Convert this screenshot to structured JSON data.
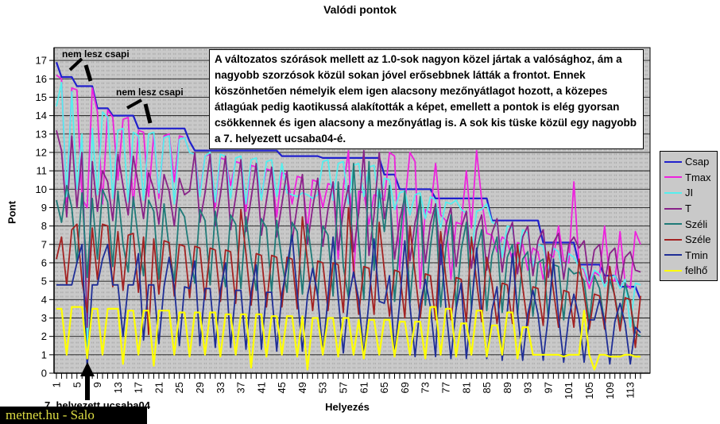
{
  "header": {
    "title": "Valódi pontok"
  },
  "axes": {
    "y_title": "Pont",
    "x_title": "Helyezés",
    "y_tick_labels": [
      "0",
      "1",
      "2",
      "3",
      "4",
      "5",
      "6",
      "7",
      "8",
      "9",
      "10",
      "11",
      "12",
      "13",
      "14",
      "15",
      "16",
      "17"
    ],
    "x_tick_labels": [
      "1",
      "5",
      "9",
      "13",
      "17",
      "21",
      "25",
      "29",
      "33",
      "37",
      "41",
      "45",
      "49",
      "53",
      "57",
      "61",
      "65",
      "69",
      "73",
      "77",
      "81",
      "85",
      "89",
      "93",
      "97",
      "101",
      "105",
      "109",
      "113"
    ],
    "x_label_step": 4
  },
  "annotations": {
    "callout1": "nem lesz csapi",
    "callout2": "nem lesz csapi",
    "arrow_caption": "7. helyezett ucsaba04",
    "watermark": "metnet.hu - Salo"
  },
  "textbox": {
    "content": "A változatos szórások mellett az 1.0-sok nagyon közel jártak a valósághoz, ám a nagyobb szorzósok közül sokan jóvel erősebbnek látták a frontot. Ennek köszönhetően némelyik elem igen alacsony mezőnyátlagot hozott, a közepes átlagúak pedig kaotikussá alakították a képet, emellett a pontok is elég gyorsan csökkennek és igen alacsony a mezőnyátlag is. A sok kis tüske közül egy nagyobb a 7. helyezett ucsaba04-é."
  },
  "chart_data": {
    "type": "line",
    "title": "Valódi pontok",
    "xlabel": "Helyezés",
    "ylabel": "Pont",
    "ylim": [
      0,
      17.7
    ],
    "x_start": 1,
    "x_step": 1,
    "x_count": 115,
    "grid": true,
    "legend_position": "right",
    "plot_bg": "#C9C9C9",
    "series": [
      {
        "name": "Csap",
        "color": "#2020CC",
        "values": [
          16.9,
          16.1,
          16.1,
          16.1,
          15.6,
          15.6,
          15.6,
          15.6,
          14.4,
          14.4,
          14.4,
          14,
          14,
          14,
          14,
          14,
          13.3,
          13.3,
          13.3,
          13.3,
          13.3,
          13.3,
          13.3,
          13.3,
          13.3,
          13.3,
          12.6,
          12.1,
          12.1,
          12.1,
          12.1,
          12.1,
          12.1,
          12.1,
          12.1,
          12.1,
          12.1,
          12.1,
          12.1,
          12.1,
          12.1,
          12.1,
          12.1,
          12.1,
          11.8,
          11.8,
          11.8,
          11.8,
          11.8,
          11.8,
          11.8,
          11.8,
          11.7,
          11.7,
          11.7,
          11.7,
          11.7,
          11.7,
          11.7,
          11.7,
          11.7,
          11.7,
          11.7,
          11.7,
          10.8,
          10.8,
          10.8,
          10,
          10,
          10,
          10,
          10,
          10,
          10,
          9.5,
          9.5,
          9.5,
          9.5,
          9.5,
          9.5,
          9.5,
          9.5,
          9.5,
          9.5,
          9.5,
          8.3,
          8.3,
          8.3,
          8.3,
          8.3,
          8.3,
          8.3,
          8.3,
          8.3,
          8.3,
          7.1,
          7.1,
          7.1,
          7.1,
          7.1,
          7.1,
          7.1,
          5.9,
          5.9,
          5.9,
          5.9,
          5.9,
          5.3,
          5.3,
          5.3,
          4.7,
          4.7,
          4.7,
          4.7,
          4
        ]
      },
      {
        "name": "Tmax",
        "color": "#EE22DD",
        "values": [
          16.2,
          16,
          9.3,
          15.5,
          15.4,
          9.5,
          9,
          15.5,
          14.2,
          9.2,
          14.3,
          13.9,
          10.5,
          13.8,
          13.9,
          9,
          13.2,
          13.1,
          9.6,
          13,
          9.5,
          12.9,
          13,
          10.4,
          12.9,
          12.8,
          12,
          11.9,
          9.8,
          11.8,
          11.9,
          9,
          11.7,
          11.6,
          10.2,
          11.5,
          11.4,
          8.8,
          11.3,
          11.2,
          9.6,
          11.1,
          11,
          8.5,
          10.9,
          10.8,
          9.2,
          10.7,
          10.6,
          7.8,
          10.5,
          10.4,
          9,
          10.3,
          10.2,
          6.2,
          10.1,
          12.1,
          5.2,
          9.9,
          9.8,
          8.1,
          9.7,
          9.6,
          9.4,
          12,
          11.8,
          5.6,
          9.2,
          12,
          11.5,
          4.6,
          8.9,
          8.7,
          11.4,
          8.6,
          8.3,
          5.1,
          8.2,
          8.1,
          11,
          7.9,
          12.1,
          9.4,
          7.6,
          7.5,
          6.6,
          7.4,
          7.2,
          6.1,
          7.1,
          7,
          5.6,
          6.8,
          6.6,
          5.1,
          6.5,
          6.3,
          8,
          6.1,
          6,
          10.4,
          5.9,
          5.6,
          4.6,
          5.5,
          5.3,
          8,
          5.1,
          5,
          7.7,
          4.9,
          4.6,
          7.7,
          7
        ]
      },
      {
        "name": "JI",
        "color": "#55EEEE",
        "values": [
          14.5,
          15.8,
          9.6,
          15.3,
          10,
          13,
          1.3,
          13.3,
          9.7,
          14.2,
          13.9,
          9.5,
          13.2,
          13.3,
          9.3,
          13.1,
          12.9,
          9.4,
          13,
          13.1,
          9.8,
          12.8,
          12.9,
          9.2,
          12.7,
          12.8,
          12,
          11.9,
          9.6,
          11.8,
          12,
          9.3,
          11.9,
          11.8,
          9.5,
          11.7,
          11.8,
          9.2,
          11.6,
          11.7,
          9.4,
          11.5,
          11.6,
          9.6,
          11.4,
          9.8,
          9.7,
          9.6,
          9.8,
          9.7,
          9.5,
          9.7,
          11.5,
          11.6,
          9.4,
          11.4,
          11.5,
          9.2,
          11.3,
          11.4,
          9.6,
          11.2,
          11.3,
          9,
          10.6,
          10.5,
          8.9,
          9.8,
          9.9,
          8.6,
          9.7,
          9.8,
          8.4,
          9.6,
          9.4,
          7.9,
          9.3,
          9.2,
          9.4,
          8.9,
          8.7,
          6.5,
          8.8,
          8.9,
          9.2,
          8.2,
          8.1,
          6.3,
          8,
          7.9,
          6,
          7.8,
          7.6,
          5.8,
          7,
          6.9,
          5.6,
          6.8,
          6.6,
          5.3,
          6.5,
          6.3,
          5.8,
          5.7,
          4.9,
          5.6,
          5.4,
          4.7,
          5.2,
          5.3,
          4.6,
          5.1,
          2.5,
          4.9,
          4.8
        ]
      },
      {
        "name": "T",
        "color": "#882288",
        "values": [
          13.2,
          12.1,
          8.5,
          12.9,
          9,
          12,
          2.5,
          11.5,
          8.8,
          11,
          10.4,
          8.3,
          11.9,
          10.2,
          8.6,
          11.8,
          10.2,
          8.4,
          10.9,
          10,
          8.1,
          10.8,
          9.9,
          8,
          10.6,
          9.7,
          9.9,
          12,
          8.2,
          9.8,
          11.9,
          8,
          9.7,
          11.8,
          7.8,
          9.6,
          11.6,
          7.7,
          9.5,
          11.4,
          7.5,
          9.4,
          11.2,
          7.4,
          9.2,
          11,
          7.2,
          9.1,
          10.8,
          7,
          9,
          10.6,
          6.9,
          8.9,
          10.4,
          6.7,
          8.8,
          10.2,
          6.6,
          8.7,
          12.1,
          6.4,
          8.6,
          12,
          8.4,
          9.8,
          6.2,
          8.3,
          9.6,
          6.1,
          8.2,
          9.4,
          6,
          8.1,
          9.2,
          5.9,
          8,
          9,
          5.8,
          7.9,
          8.8,
          5.7,
          7.8,
          8.6,
          5.6,
          7.6,
          8.4,
          5.5,
          7.5,
          8.2,
          5.4,
          7.4,
          8,
          5.3,
          7.2,
          7.8,
          5.2,
          7.1,
          7.6,
          5.1,
          7,
          7.4,
          6.8,
          7.2,
          5,
          6.7,
          7,
          4.9,
          6.5,
          6.8,
          4.8,
          6.3,
          6.6,
          5.6,
          5.5
        ]
      },
      {
        "name": "Széli",
        "color": "#1F7A78",
        "values": [
          9.4,
          8.2,
          10.2,
          9,
          6,
          9.8,
          5.2,
          9.5,
          6.2,
          10,
          9.3,
          5.8,
          9.9,
          7,
          5.5,
          9.6,
          7.2,
          5.3,
          9.4,
          8.8,
          5.1,
          9.2,
          6.8,
          5,
          9,
          8.5,
          6.6,
          4.9,
          8.9,
          8.3,
          4.8,
          8.8,
          6.4,
          4.7,
          8.6,
          8.1,
          4.6,
          8.5,
          6.2,
          4.5,
          8.4,
          7.9,
          4.4,
          8.3,
          6.1,
          4.4,
          8.2,
          7.7,
          4.3,
          8.1,
          5.9,
          4.2,
          8,
          7.5,
          4.2,
          10.4,
          5.8,
          4.1,
          11.4,
          7.3,
          4,
          11.5,
          5.6,
          10,
          7.7,
          10.2,
          3.9,
          7.1,
          9.9,
          3.8,
          7,
          9.6,
          3.7,
          6.9,
          9,
          3.6,
          6.8,
          8.6,
          3.6,
          6.7,
          8.2,
          3.5,
          6.6,
          7.8,
          3.4,
          6.4,
          7.4,
          3.3,
          6.3,
          7,
          3.2,
          6.2,
          6.6,
          3.1,
          6,
          6.2,
          3,
          5.9,
          5.8,
          2.9,
          5.7,
          5.4,
          5.5,
          5,
          2.8,
          5.3,
          4.6,
          2.7,
          5.1,
          4.2,
          2.6,
          4.9,
          3.8,
          2.2,
          2
        ]
      },
      {
        "name": "Széle",
        "color": "#A32222",
        "values": [
          6.2,
          7.4,
          4.8,
          7.8,
          8.1,
          5,
          3.3,
          7.9,
          5.1,
          8.1,
          8,
          4.7,
          7.7,
          4.5,
          7.5,
          7.6,
          4.4,
          7.4,
          2.1,
          7.3,
          4.3,
          7.2,
          7.1,
          4.2,
          7,
          6.9,
          4.1,
          6.9,
          6.8,
          4,
          6.8,
          6.7,
          3.9,
          6.7,
          6.6,
          3.8,
          8.9,
          6.5,
          3.7,
          6.5,
          6.4,
          3.6,
          6.4,
          6.3,
          3.6,
          6.3,
          6.2,
          3.5,
          8.5,
          6.1,
          3.4,
          6.1,
          6,
          3.4,
          6,
          5.9,
          3.3,
          9,
          5.8,
          3.2,
          5.8,
          5.7,
          3.2,
          8.2,
          5.6,
          3.1,
          5.6,
          5.5,
          3,
          8,
          5.4,
          3,
          5.4,
          5.3,
          2.9,
          7.7,
          5.2,
          2.9,
          5.2,
          5.1,
          2.8,
          7.4,
          5,
          2.8,
          6.3,
          4.9,
          2.7,
          4.9,
          4.8,
          2.7,
          7,
          4.7,
          2.6,
          4.7,
          4.6,
          2.6,
          6.6,
          4.5,
          2.5,
          4.5,
          4.4,
          2.5,
          6.2,
          4.3,
          2.4,
          4.3,
          4.2,
          2.4,
          5.8,
          4.1,
          2.3,
          4.1,
          4,
          1.4,
          4.2
        ]
      },
      {
        "name": "Tmin",
        "color": "#1F2E96",
        "values": [
          4.8,
          4.8,
          4.8,
          4.8,
          6,
          7,
          0.3,
          4.8,
          4.8,
          6.2,
          7,
          4.8,
          4.8,
          2,
          4.8,
          4.8,
          6.5,
          1.8,
          4.8,
          4.8,
          1.6,
          4.7,
          6.3,
          4.7,
          1.5,
          4.7,
          4.6,
          6.1,
          1.5,
          4.6,
          4.6,
          1.4,
          4.5,
          6,
          1.4,
          4.5,
          4.5,
          1.3,
          4.4,
          5.9,
          1.3,
          4.4,
          4.4,
          1.2,
          4.3,
          5.8,
          7.5,
          4.3,
          1.2,
          4.2,
          5.7,
          4.2,
          1.1,
          4.1,
          7.4,
          4.1,
          1.1,
          4,
          5.5,
          4,
          1,
          3.9,
          7.3,
          3.9,
          3.8,
          5.3,
          1,
          3.8,
          7.2,
          3.7,
          0.9,
          3.7,
          5.1,
          3.6,
          0.9,
          7,
          3.6,
          0.8,
          3.5,
          4.9,
          0.8,
          3.5,
          6.8,
          3.4,
          0.8,
          3.4,
          4.7,
          0.7,
          3.3,
          6.5,
          3.3,
          0.7,
          3.2,
          4.5,
          3.2,
          0.7,
          3.1,
          6.2,
          3.1,
          0.6,
          3,
          4.3,
          3,
          0.6,
          2.9,
          2.9,
          4,
          2.8,
          0.5,
          2.8,
          3.8,
          2.7,
          0.5,
          2.5,
          2.2
        ]
      },
      {
        "name": "felhő",
        "color": "#FFFF00",
        "values": [
          3.5,
          3.5,
          1,
          3.6,
          3.6,
          3.6,
          0.8,
          3.5,
          3.5,
          1,
          3.5,
          3.5,
          3.5,
          0.5,
          3.4,
          3.4,
          1,
          3.4,
          3.4,
          0.4,
          3.4,
          3.4,
          3.4,
          1,
          3.3,
          3.3,
          0.9,
          3.3,
          3.3,
          1,
          3.3,
          3.3,
          0.9,
          3.2,
          3.2,
          1,
          3.2,
          3.2,
          0.3,
          3.2,
          3.2,
          0.9,
          3.1,
          3.1,
          1,
          3.1,
          3.1,
          0.9,
          3.1,
          0.2,
          3,
          3,
          1,
          3,
          3,
          0.9,
          3,
          3,
          1,
          2.9,
          0.8,
          2.9,
          2.9,
          1,
          2.9,
          2.9,
          0.9,
          2.8,
          2.8,
          1,
          2.8,
          2.8,
          0.8,
          3.6,
          3.6,
          1,
          3.5,
          3.5,
          0.9,
          2.7,
          2.7,
          1,
          3.4,
          3.4,
          0.9,
          2.6,
          2.6,
          1,
          3.3,
          3.3,
          0.8,
          2.5,
          2.5,
          1,
          1,
          1,
          1,
          1,
          1,
          0.9,
          1,
          1,
          1,
          3.4,
          1,
          0.2,
          1,
          1,
          0.9,
          0.9,
          0.9,
          1,
          1,
          0.9,
          0.9
        ]
      }
    ]
  }
}
